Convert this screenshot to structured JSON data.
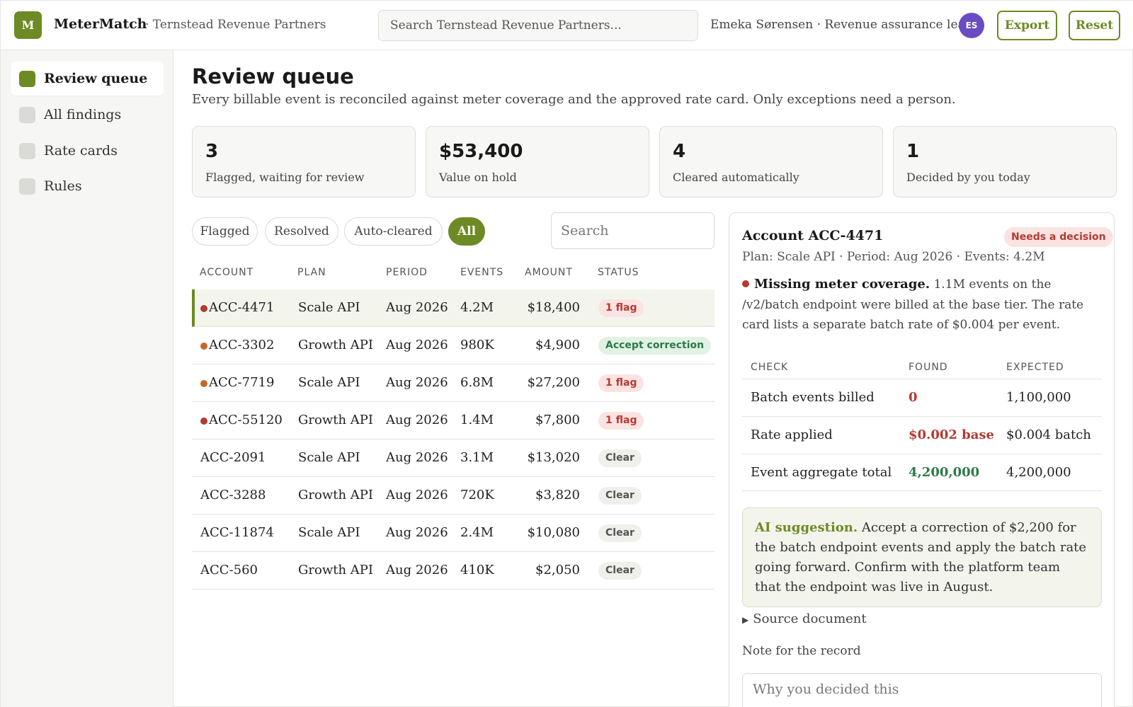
{
  "app": {
    "logo_letter": "M",
    "brand": "MeterMatch",
    "org": "· Ternstead Revenue Partners",
    "search_placeholder": "Search Ternstead Revenue Partners...",
    "user": "Emeka Sørensen · Revenue assurance lead",
    "avatar_initials": "ES",
    "export_label": "Export",
    "reset_label": "Reset",
    "accent_color": "#6e8a24"
  },
  "sidebar": {
    "items": [
      {
        "label": "Review queue",
        "active": true
      },
      {
        "label": "All findings",
        "active": false
      },
      {
        "label": "Rate cards",
        "active": false
      },
      {
        "label": "Rules",
        "active": false
      }
    ]
  },
  "page": {
    "title": "Review queue",
    "subtitle": "Every billable event is reconciled against meter coverage and the approved rate card. Only exceptions need a person."
  },
  "stats": [
    {
      "value": "3",
      "label": "Flagged, waiting for review"
    },
    {
      "value": "$53,400",
      "label": "Value on hold"
    },
    {
      "value": "4",
      "label": "Cleared automatically"
    },
    {
      "value": "1",
      "label": "Decided by you today"
    }
  ],
  "filters": {
    "chips": [
      {
        "label": "Flagged",
        "active": false
      },
      {
        "label": "Resolved",
        "active": false
      },
      {
        "label": "Auto-cleared",
        "active": false
      },
      {
        "label": "All",
        "active": true
      }
    ],
    "search_placeholder": "Search"
  },
  "table": {
    "headers": [
      "ACCOUNT",
      "PLAN",
      "PERIOD",
      "EVENTS",
      "AMOUNT",
      "STATUS"
    ],
    "rows": [
      {
        "account": "ACC-4471",
        "plan": "Scale API",
        "period": "Aug 2026",
        "events": "4.2M",
        "amount": "$18,400",
        "status": "1 flag",
        "status_kind": "flag",
        "dot": "#b33a32",
        "selected": true
      },
      {
        "account": "ACC-3302",
        "plan": "Growth API",
        "period": "Aug 2026",
        "events": "980K",
        "amount": "$4,900",
        "status": "Accept correction",
        "status_kind": "ok",
        "dot": "#c2692a",
        "selected": false
      },
      {
        "account": "ACC-7719",
        "plan": "Scale API",
        "period": "Aug 2026",
        "events": "6.8M",
        "amount": "$27,200",
        "status": "1 flag",
        "status_kind": "flag",
        "dot": "#c2692a",
        "selected": false
      },
      {
        "account": "ACC-55120",
        "plan": "Growth API",
        "period": "Aug 2026",
        "events": "1.4M",
        "amount": "$7,800",
        "status": "1 flag",
        "status_kind": "flag",
        "dot": "#b33a32",
        "selected": false
      },
      {
        "account": "ACC-2091",
        "plan": "Scale API",
        "period": "Aug 2026",
        "events": "3.1M",
        "amount": "$13,020",
        "status": "Clear",
        "status_kind": "clear",
        "dot": "",
        "selected": false
      },
      {
        "account": "ACC-3288",
        "plan": "Growth API",
        "period": "Aug 2026",
        "events": "720K",
        "amount": "$3,820",
        "status": "Clear",
        "status_kind": "clear",
        "dot": "",
        "selected": false
      },
      {
        "account": "ACC-11874",
        "plan": "Scale API",
        "period": "Aug 2026",
        "events": "2.4M",
        "amount": "$10,080",
        "status": "Clear",
        "status_kind": "clear",
        "dot": "",
        "selected": false
      },
      {
        "account": "ACC-560",
        "plan": "Growth API",
        "period": "Aug 2026",
        "events": "410K",
        "amount": "$2,050",
        "status": "Clear",
        "status_kind": "clear",
        "dot": "",
        "selected": false
      }
    ]
  },
  "detail": {
    "title": "Account ACC-4471",
    "badge": "Needs a decision",
    "meta": "Plan: Scale API · Period: Aug 2026 · Events: 4.2M",
    "finding_title": "Missing meter coverage.",
    "finding_text": "1.1M events on the /v2/batch endpoint were billed at the base tier. The rate card lists a separate batch rate of $0.004 per event.",
    "checks_headers": [
      "CHECK",
      "FOUND",
      "EXPECTED"
    ],
    "checks": [
      {
        "check": "Batch events billed",
        "found": "0",
        "expected": "1,100,000",
        "tone": "red"
      },
      {
        "check": "Rate applied",
        "found": "$0.002 base",
        "expected": "$0.004 batch",
        "tone": "red"
      },
      {
        "check": "Event aggregate total",
        "found": "4,200,000",
        "expected": "4,200,000",
        "tone": "green"
      }
    ],
    "ai_label": "AI suggestion.",
    "ai_text": "Accept a correction of $2,200 for the batch endpoint events and apply the batch rate going forward. Confirm with the platform team that the endpoint was live in August.",
    "source_label": "Source document",
    "note_label": "Note for the record",
    "note_placeholder": "Why you decided this"
  }
}
